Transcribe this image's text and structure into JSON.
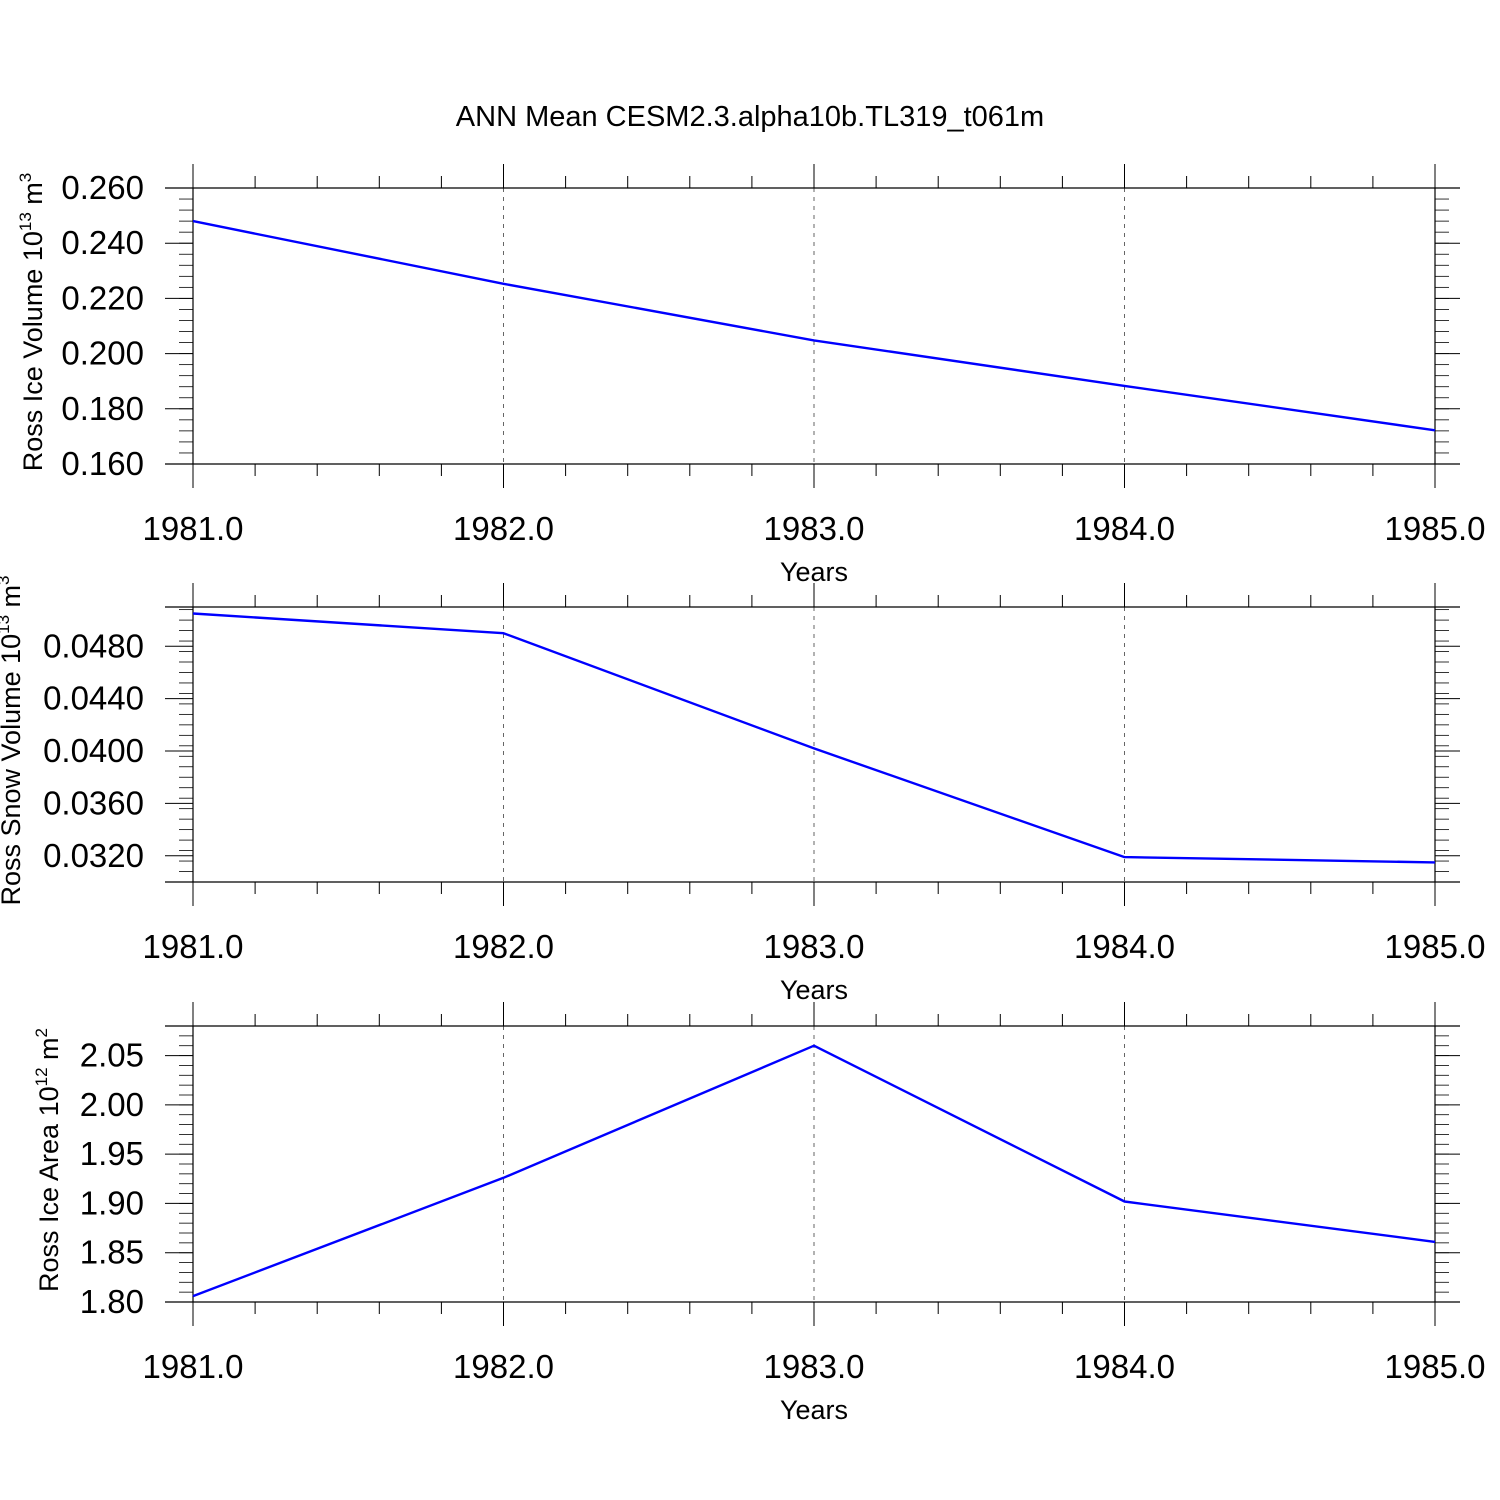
{
  "title": "ANN Mean CESM2.3.alpha10b.TL319_t061m",
  "colors": {
    "line": "#0000ff",
    "axis": "#000000",
    "grid": "#666666"
  },
  "chart_data": [
    {
      "type": "line",
      "ylabel": {
        "text": "Ross Ice Volume 10",
        "exponent": "13",
        "unit": " m",
        "unit_exponent": "3"
      },
      "xlabel": "Years",
      "x": [
        1981,
        1982,
        1983,
        1984,
        1985
      ],
      "series": [
        {
          "values": [
            0.248,
            0.2253,
            0.2048,
            0.1883,
            0.1722
          ]
        }
      ],
      "xlim": [
        1981,
        1985
      ],
      "ylim": [
        0.16,
        0.26
      ],
      "x_ticks": [
        1981,
        1982,
        1983,
        1984,
        1985
      ],
      "x_tick_labels": [
        "1981.0",
        "1982.0",
        "1983.0",
        "1984.0",
        "1985.0"
      ],
      "y_ticks": [
        0.16,
        0.18,
        0.2,
        0.22,
        0.24,
        0.26
      ],
      "y_tick_labels": [
        "0.160",
        "0.180",
        "0.200",
        "0.220",
        "0.240",
        "0.260"
      ],
      "y_minor_step": 0.004,
      "grid": "vertical dashed at major x ticks"
    },
    {
      "type": "line",
      "ylabel": {
        "text": "Ross Snow Volume 10",
        "exponent": "13",
        "unit": " m",
        "unit_exponent": "3"
      },
      "xlabel": "Years",
      "x": [
        1981,
        1982,
        1983,
        1984,
        1985
      ],
      "series": [
        {
          "values": [
            0.0505,
            0.049,
            0.0402,
            0.0319,
            0.0315
          ]
        }
      ],
      "xlim": [
        1981,
        1985
      ],
      "ylim": [
        0.03,
        0.051
      ],
      "x_ticks": [
        1981,
        1982,
        1983,
        1984,
        1985
      ],
      "x_tick_labels": [
        "1981.0",
        "1982.0",
        "1983.0",
        "1984.0",
        "1985.0"
      ],
      "y_ticks": [
        0.032,
        0.036,
        0.04,
        0.044,
        0.048
      ],
      "y_tick_labels": [
        "0.0320",
        "0.0360",
        "0.0400",
        "0.0440",
        "0.0480"
      ],
      "y_minor_step": 0.0008,
      "grid": "vertical dashed at major x ticks"
    },
    {
      "type": "line",
      "ylabel": {
        "text": "Ross Ice Area 10",
        "exponent": "12",
        "unit": " m",
        "unit_exponent": "2"
      },
      "xlabel": "Years",
      "x": [
        1981,
        1982,
        1983,
        1984,
        1985
      ],
      "series": [
        {
          "values": [
            1.806,
            1.926,
            2.06,
            1.902,
            1.861
          ]
        }
      ],
      "xlim": [
        1981,
        1985
      ],
      "ylim": [
        1.8,
        2.08
      ],
      "x_ticks": [
        1981,
        1982,
        1983,
        1984,
        1985
      ],
      "x_tick_labels": [
        "1981.0",
        "1982.0",
        "1983.0",
        "1984.0",
        "1985.0"
      ],
      "y_ticks": [
        1.8,
        1.85,
        1.9,
        1.95,
        2.0,
        2.05
      ],
      "y_tick_labels": [
        "1.80",
        "1.85",
        "1.90",
        "1.95",
        "2.00",
        "2.05"
      ],
      "y_minor_step": 0.01,
      "grid": "vertical dashed at major x ticks"
    }
  ]
}
